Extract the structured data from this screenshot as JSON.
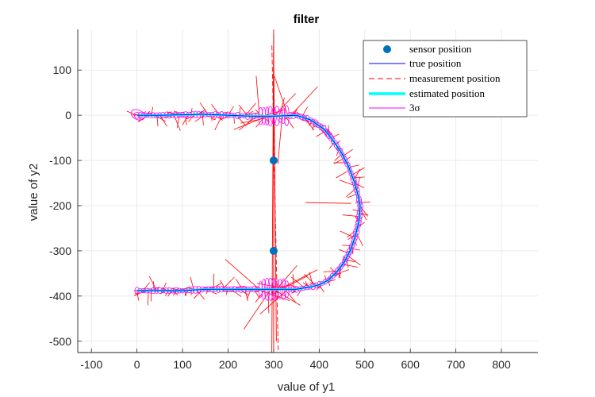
{
  "chart_data": {
    "type": "line",
    "title": "filter",
    "xlabel": "value of y1",
    "ylabel": "value of y2",
    "xlim": [
      -130,
      880
    ],
    "ylim": [
      -525,
      190
    ],
    "xticks": [
      -100,
      0,
      100,
      200,
      300,
      400,
      500,
      600,
      700,
      800
    ],
    "yticks": [
      100,
      0,
      -100,
      -200,
      -300,
      -400,
      -500
    ],
    "grid": true,
    "legend_position": "top-right",
    "colors": {
      "sensor": "#0072BD",
      "true": "#0000FF",
      "measurement": "#FF0000",
      "estimated": "#00FFFF",
      "sigma": "#FF00FF"
    },
    "series": [
      {
        "name": "sensor position",
        "style": "markers",
        "x": [
          300,
          300
        ],
        "y": [
          -100,
          -300
        ]
      },
      {
        "name": "true position",
        "style": "line",
        "x": [
          0,
          50,
          100,
          150,
          200,
          250,
          300,
          350,
          380,
          410,
          430,
          450,
          465,
          478,
          486,
          490,
          488,
          480,
          470,
          455,
          440,
          420,
          400,
          380,
          350,
          300,
          250,
          200,
          150,
          100,
          50,
          0
        ],
        "y": [
          0,
          0,
          1,
          2,
          0,
          -2,
          -2,
          0,
          -10,
          -30,
          -55,
          -85,
          -115,
          -150,
          -180,
          -200,
          -230,
          -265,
          -295,
          -325,
          -345,
          -365,
          -375,
          -380,
          -385,
          -385,
          -385,
          -385,
          -385,
          -388,
          -388,
          -388
        ]
      },
      {
        "name": "measurement position",
        "style": "dashed",
        "x": [
          -5,
          20,
          50,
          80,
          110,
          140,
          170,
          200,
          230,
          260,
          290,
          300,
          320,
          350,
          380,
          410,
          430,
          450,
          465,
          478,
          486,
          490,
          488,
          480,
          470,
          455,
          440,
          420,
          400,
          380,
          350,
          320,
          300,
          290,
          260,
          230,
          200,
          170,
          140,
          110,
          80,
          50,
          20,
          -5
        ],
        "y": [
          0,
          8,
          -6,
          10,
          -8,
          6,
          -10,
          8,
          -6,
          12,
          -15,
          5,
          -12,
          8,
          -20,
          -28,
          -60,
          -80,
          -120,
          -145,
          -185,
          -195,
          -235,
          -260,
          -300,
          -320,
          -350,
          -360,
          -380,
          -370,
          -390,
          -380,
          -395,
          -380,
          -390,
          -378,
          -392,
          -380,
          -388,
          -382,
          -392,
          -380,
          -390,
          -395
        ]
      },
      {
        "name": "estimated position",
        "style": "thick-line",
        "x": [
          0,
          50,
          100,
          150,
          200,
          250,
          300,
          350,
          380,
          410,
          430,
          450,
          465,
          478,
          486,
          490,
          488,
          480,
          470,
          455,
          440,
          420,
          400,
          380,
          350,
          300,
          250,
          200,
          150,
          100,
          50,
          0
        ],
        "y": [
          0,
          0,
          1,
          2,
          0,
          -2,
          -2,
          0,
          -10,
          -30,
          -55,
          -85,
          -115,
          -150,
          -180,
          -200,
          -230,
          -265,
          -295,
          -325,
          -345,
          -365,
          -375,
          -380,
          -385,
          -385,
          -385,
          -385,
          -385,
          -388,
          -388,
          -388
        ]
      },
      {
        "name": "3σ",
        "style": "ellipses",
        "x": [
          0,
          50,
          100,
          150,
          200,
          250,
          300,
          350,
          380,
          410,
          430,
          450,
          465,
          478,
          486,
          490,
          488,
          480,
          470,
          455,
          440,
          420,
          400,
          380,
          350,
          300,
          250,
          200,
          150,
          100,
          50,
          0
        ],
        "y": [
          0,
          0,
          1,
          2,
          0,
          -2,
          -2,
          0,
          -10,
          -30,
          -55,
          -85,
          -115,
          -150,
          -180,
          -200,
          -230,
          -265,
          -295,
          -325,
          -345,
          -365,
          -375,
          -380,
          -385,
          -385,
          -385,
          -385,
          -385,
          -388,
          -388,
          -388
        ]
      }
    ]
  }
}
